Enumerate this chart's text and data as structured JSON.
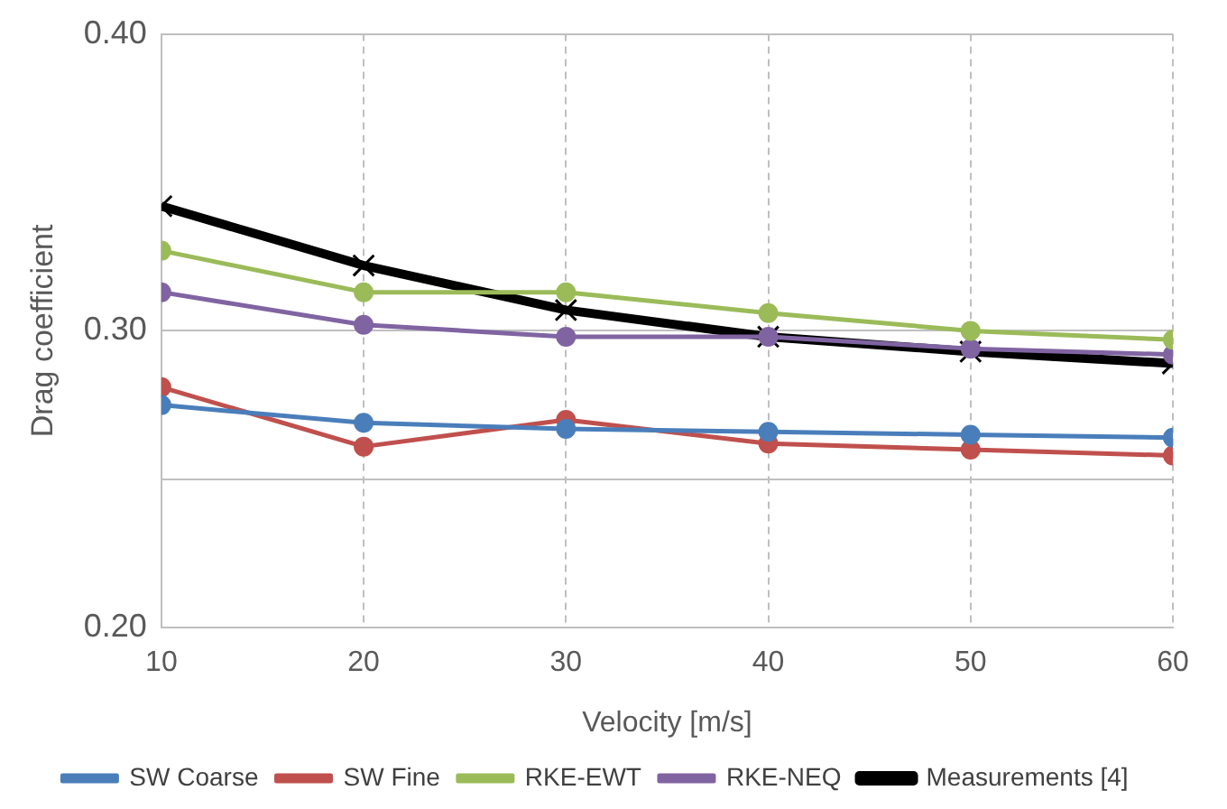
{
  "chart_data": {
    "type": "line",
    "xlabel": "Velocity [m/s]",
    "ylabel": "Drag coefficient",
    "x": [
      10,
      20,
      30,
      40,
      50,
      60
    ],
    "xlim": [
      10,
      60
    ],
    "xticks": [
      10,
      20,
      30,
      40,
      50,
      60
    ],
    "ylim": [
      0.2,
      0.4
    ],
    "yticks": [
      {
        "value": 0.2,
        "label": "0.20"
      },
      {
        "value": 0.25,
        "label": null
      },
      {
        "value": 0.3,
        "label": "0.30"
      },
      {
        "value": 0.4,
        "label": "0.40"
      }
    ],
    "grid": true,
    "legend": "bottom",
    "series": [
      {
        "name": "SW Coarse",
        "color": "#4a7ebb",
        "marker": "circle",
        "values": [
          0.275,
          0.269,
          0.267,
          0.266,
          0.265,
          0.264
        ]
      },
      {
        "name": "SW Fine",
        "color": "#c0504d",
        "marker": "circle",
        "values": [
          0.281,
          0.261,
          0.27,
          0.262,
          0.26,
          0.258
        ]
      },
      {
        "name": "RKE-EWT",
        "color": "#9bbb59",
        "marker": "circle",
        "values": [
          0.327,
          0.313,
          0.313,
          0.306,
          0.3,
          0.297
        ]
      },
      {
        "name": "RKE-NEQ",
        "color": "#8064a2",
        "marker": "circle",
        "values": [
          0.313,
          0.302,
          0.298,
          0.298,
          0.294,
          0.292
        ]
      },
      {
        "name": "Measurements [4]",
        "color": "#000000",
        "marker": "cross",
        "values": [
          0.342,
          0.322,
          0.307,
          0.298,
          0.293,
          0.289
        ]
      }
    ]
  }
}
